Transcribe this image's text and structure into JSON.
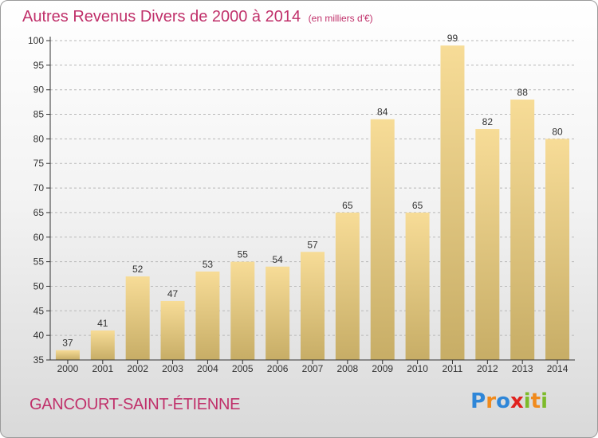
{
  "header": {
    "title": "Autres Revenus Divers de 2000 à 2014",
    "unit": "(en milliers d'€)"
  },
  "footer": {
    "city": "GANCOURT-SAINT-ÉTIENNE",
    "brand_letters": [
      {
        "ch": "P",
        "color": "#2e86d8"
      },
      {
        "ch": "r",
        "color": "#f08a1c"
      },
      {
        "ch": "o",
        "color": "#2e86d8"
      },
      {
        "ch": "x",
        "color": "#e0221e"
      },
      {
        "ch": "i",
        "color": "#7dbb2a"
      },
      {
        "ch": "t",
        "color": "#f08a1c"
      },
      {
        "ch": "i",
        "color": "#7dbb2a"
      }
    ]
  },
  "colors": {
    "title": "#c0306a",
    "bar_top": "#f7dc97",
    "bar_bottom": "#c7ad66",
    "axis": "#333333",
    "grid": "#b8b8b8"
  },
  "chart_data": {
    "type": "bar",
    "categories": [
      "2000",
      "2001",
      "2002",
      "2003",
      "2004",
      "2005",
      "2006",
      "2007",
      "2008",
      "2009",
      "2010",
      "2011",
      "2012",
      "2013",
      "2014"
    ],
    "values": [
      37,
      41,
      52,
      47,
      53,
      55,
      54,
      57,
      65,
      84,
      65,
      99,
      82,
      88,
      80
    ],
    "ylim": [
      35,
      100
    ],
    "yticks": [
      35,
      40,
      45,
      50,
      55,
      60,
      65,
      70,
      75,
      80,
      85,
      90,
      95,
      100
    ],
    "grid": true,
    "data_labels": true
  }
}
